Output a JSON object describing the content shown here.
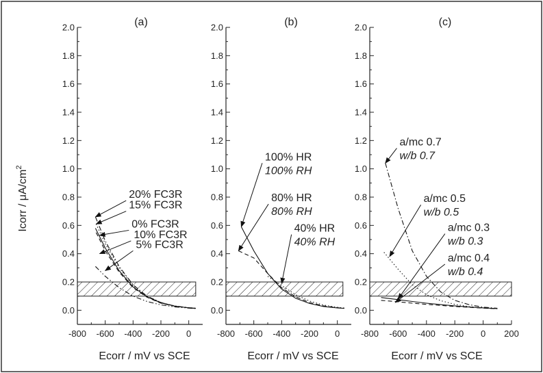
{
  "ylabel": "Icorr / μA/cm",
  "ylabel_sup": "2",
  "panels": [
    {
      "label": "(a)",
      "xlabel": "Ecorr / mV vs SCE"
    },
    {
      "label": "(b)",
      "xlabel": "Ecorr / mV vs SCE"
    },
    {
      "label": "(c)",
      "xlabel": "Ecorr / mV vs SCE"
    }
  ],
  "chart_data": [
    {
      "type": "line",
      "title": "(a)",
      "xlabel": "Ecorr / mV vs SCE",
      "ylabel": "Icorr / μA/cm2",
      "xlim": [
        -800,
        100
      ],
      "ylim": [
        -0.1,
        2.0
      ],
      "xticks": [
        -800,
        -600,
        -400,
        -200,
        0
      ],
      "xtick_labels": [
        "-800",
        "-600",
        "-400",
        "-200",
        "0"
      ],
      "yticks": [
        0.0,
        0.2,
        0.4,
        0.6,
        0.8,
        1.0,
        1.2,
        1.4,
        1.6,
        1.8,
        2.0
      ],
      "ytick_labels": [
        "0.0",
        "0.2",
        "0.4",
        "0.6",
        "0.8",
        "1.0",
        "1.2",
        "1.4",
        "1.6",
        "1.8",
        "2.0"
      ],
      "hatched_band": {
        "x": [
          -800,
          50
        ],
        "y": [
          0.1,
          0.2
        ]
      },
      "series": [
        {
          "name": "20% FC3R",
          "dash": "dashdot",
          "x": [
            -670,
            -600,
            -500,
            -400,
            -300,
            -200,
            -100,
            0,
            50
          ],
          "y": [
            0.66,
            0.49,
            0.31,
            0.18,
            0.1,
            0.055,
            0.03,
            0.018,
            0.014
          ]
        },
        {
          "name": "15% FC3R",
          "dash": "dot",
          "x": [
            -665,
            -600,
            -500,
            -400,
            -300,
            -200,
            -100,
            0,
            50
          ],
          "y": [
            0.61,
            0.47,
            0.3,
            0.175,
            0.1,
            0.055,
            0.03,
            0.018,
            0.014
          ]
        },
        {
          "name": "0% FC3R",
          "dash": "solid",
          "x": [
            -670,
            -600,
            -500,
            -400,
            -300,
            -200,
            -100,
            0,
            50
          ],
          "y": [
            0.58,
            0.44,
            0.28,
            0.165,
            0.095,
            0.052,
            0.029,
            0.017,
            0.013
          ]
        },
        {
          "name": "10% FC3R",
          "dash": "dashed",
          "x": [
            -665,
            -600,
            -500,
            -400,
            -300,
            -200,
            -100,
            0,
            50
          ],
          "y": [
            0.55,
            0.42,
            0.27,
            0.16,
            0.092,
            0.05,
            0.028,
            0.017,
            0.013
          ]
        },
        {
          "name": "5% FC3R",
          "dash": "dashdotdot",
          "x": [
            -670,
            -600,
            -500,
            -400,
            -300,
            -200,
            -100,
            0,
            50
          ],
          "y": [
            0.31,
            0.24,
            0.16,
            0.1,
            0.062,
            0.038,
            0.024,
            0.015,
            0.012
          ]
        }
      ],
      "annotations": [
        {
          "lines": [
            {
              "text": "20% FC3R",
              "italic": false
            }
          ],
          "x": -430,
          "y": 0.795,
          "arrow_to": [
            -670,
            0.66
          ]
        },
        {
          "lines": [
            {
              "text": "15% FC3R",
              "italic": false
            }
          ],
          "x": -430,
          "y": 0.72,
          "arrow_to": [
            -665,
            0.61
          ]
        },
        {
          "lines": [
            {
              "text": "0% FC3R",
              "italic": false
            }
          ],
          "x": -410,
          "y": 0.585,
          "arrow_to": [
            -640,
            0.53
          ]
        },
        {
          "lines": [
            {
              "text": "10% FC3R",
              "italic": false
            }
          ],
          "x": -395,
          "y": 0.51,
          "arrow_to": [
            -640,
            0.4
          ]
        },
        {
          "lines": [
            {
              "text": "5% FC3R",
              "italic": false
            }
          ],
          "x": -380,
          "y": 0.44,
          "arrow_to": [
            -600,
            0.28
          ]
        }
      ]
    },
    {
      "type": "line",
      "title": "(b)",
      "xlabel": "Ecorr / mV vs SCE",
      "ylabel": "Icorr / μA/cm2",
      "xlim": [
        -800,
        100
      ],
      "ylim": [
        -0.1,
        2.0
      ],
      "xticks": [
        -800,
        -600,
        -400,
        -200,
        0
      ],
      "xtick_labels": [
        "-800",
        "-600",
        "-400",
        "-200",
        "0"
      ],
      "yticks": [
        0.0,
        0.2,
        0.4,
        0.6,
        0.8,
        1.0,
        1.2,
        1.4,
        1.6,
        1.8,
        2.0
      ],
      "ytick_labels": [
        "0.0",
        "0.2",
        "0.4",
        "0.6",
        "0.8",
        "1.0",
        "1.2",
        "1.4",
        "1.6",
        "1.8",
        "2.0"
      ],
      "hatched_band": {
        "x": [
          -800,
          40
        ],
        "y": [
          0.1,
          0.2
        ]
      },
      "series": [
        {
          "name": "100% HR",
          "dash": "solid",
          "x": [
            -690,
            -600,
            -500,
            -400,
            -300,
            -200,
            -100,
            0,
            50
          ],
          "y": [
            0.59,
            0.42,
            0.26,
            0.15,
            0.085,
            0.048,
            0.027,
            0.016,
            0.013
          ]
        },
        {
          "name": "80% HR",
          "dash": "dashed",
          "x": [
            -710,
            -600,
            -500,
            -400,
            -300,
            -200,
            -100,
            0,
            50
          ],
          "y": [
            0.42,
            0.37,
            0.26,
            0.16,
            0.095,
            0.055,
            0.031,
            0.018,
            0.014
          ]
        },
        {
          "name": "40% HR",
          "dash": "dot",
          "x": [
            -500,
            -400,
            -300,
            -200,
            -100,
            0,
            50
          ],
          "y": [
            0.24,
            0.175,
            0.11,
            0.065,
            0.037,
            0.021,
            0.016
          ]
        }
      ],
      "annotations": [
        {
          "lines": [
            {
              "text": "100% HR",
              "italic": false
            },
            {
              "text": "100% RH",
              "italic": true
            }
          ],
          "x": -520,
          "y": 1.06,
          "arrow_to": [
            -690,
            0.59
          ]
        },
        {
          "lines": [
            {
              "text": "80% HR",
              "italic": false
            },
            {
              "text": "80% RH",
              "italic": true
            }
          ],
          "x": -475,
          "y": 0.77,
          "arrow_to": [
            -710,
            0.42
          ]
        },
        {
          "lines": [
            {
              "text": "40% HR",
              "italic": false
            },
            {
              "text": "40% RH",
              "italic": true
            }
          ],
          "x": -310,
          "y": 0.555,
          "arrow_to": [
            -400,
            0.19
          ]
        }
      ]
    },
    {
      "type": "line",
      "title": "(c)",
      "xlabel": "Ecorr / mV vs SCE",
      "ylabel": "Icorr / μA/cm2",
      "xlim": [
        -800,
        200
      ],
      "ylim": [
        -0.1,
        2.0
      ],
      "xticks": [
        -800,
        -600,
        -400,
        -200,
        0,
        200
      ],
      "xtick_labels": [
        "-800",
        "-600",
        "-400",
        "-200",
        "0",
        "200"
      ],
      "yticks": [
        0.0,
        0.2,
        0.4,
        0.6,
        0.8,
        1.0,
        1.2,
        1.4,
        1.6,
        1.8,
        2.0
      ],
      "ytick_labels": [
        "0.0",
        "0.2",
        "0.4",
        "0.6",
        "0.8",
        "1.0",
        "1.2",
        "1.4",
        "1.6",
        "1.8",
        "2.0"
      ],
      "hatched_band": {
        "x": [
          -800,
          200
        ],
        "y": [
          0.1,
          0.2
        ]
      },
      "series": [
        {
          "name": "a/mc 0.7",
          "dash": "dashdot",
          "x": [
            -690,
            -600,
            -500,
            -400,
            -300,
            -200,
            -100,
            0,
            100
          ],
          "y": [
            1.04,
            0.72,
            0.42,
            0.24,
            0.13,
            0.07,
            0.04,
            0.022,
            0.014
          ]
        },
        {
          "name": "a/mc 0.5",
          "dash": "dot",
          "x": [
            -700,
            -600,
            -500,
            -400,
            -300,
            -200,
            -100,
            0,
            100
          ],
          "y": [
            0.41,
            0.29,
            0.18,
            0.11,
            0.068,
            0.042,
            0.026,
            0.016,
            0.011
          ]
        },
        {
          "name": "a/mc 0.3",
          "dash": "solid",
          "x": [
            -720,
            -600,
            -500,
            -400,
            -300,
            -200,
            -100,
            0,
            100
          ],
          "y": [
            0.09,
            0.075,
            0.062,
            0.05,
            0.04,
            0.031,
            0.023,
            0.017,
            0.012
          ]
        },
        {
          "name": "a/mc 0.4",
          "dash": "dashed",
          "x": [
            -720,
            -600,
            -500,
            -400,
            -300,
            -200,
            -100,
            0,
            100
          ],
          "y": [
            0.07,
            0.06,
            0.05,
            0.042,
            0.034,
            0.027,
            0.021,
            0.015,
            0.011
          ]
        }
      ],
      "annotations": [
        {
          "lines": [
            {
              "text": "a/mc 0.7",
              "italic": false
            },
            {
              "text": "w/b 0.7",
              "italic": true
            }
          ],
          "x": -590,
          "y": 1.165,
          "arrow_to": [
            -690,
            1.04
          ]
        },
        {
          "lines": [
            {
              "text": "a/mc 0.5",
              "italic": false
            },
            {
              "text": "w/b 0.5",
              "italic": true
            }
          ],
          "x": -420,
          "y": 0.765,
          "arrow_to": [
            -660,
            0.38
          ]
        },
        {
          "lines": [
            {
              "text": "a/mc 0.3",
              "italic": false
            },
            {
              "text": "w/b 0.3",
              "italic": true
            }
          ],
          "x": -250,
          "y": 0.56,
          "arrow_to": [
            -600,
            0.08
          ]
        },
        {
          "lines": [
            {
              "text": "a/mc 0.4",
              "italic": false
            },
            {
              "text": "w/b 0.4",
              "italic": true
            }
          ],
          "x": -250,
          "y": 0.345,
          "arrow_to": [
            -620,
            0.055
          ]
        }
      ]
    }
  ]
}
